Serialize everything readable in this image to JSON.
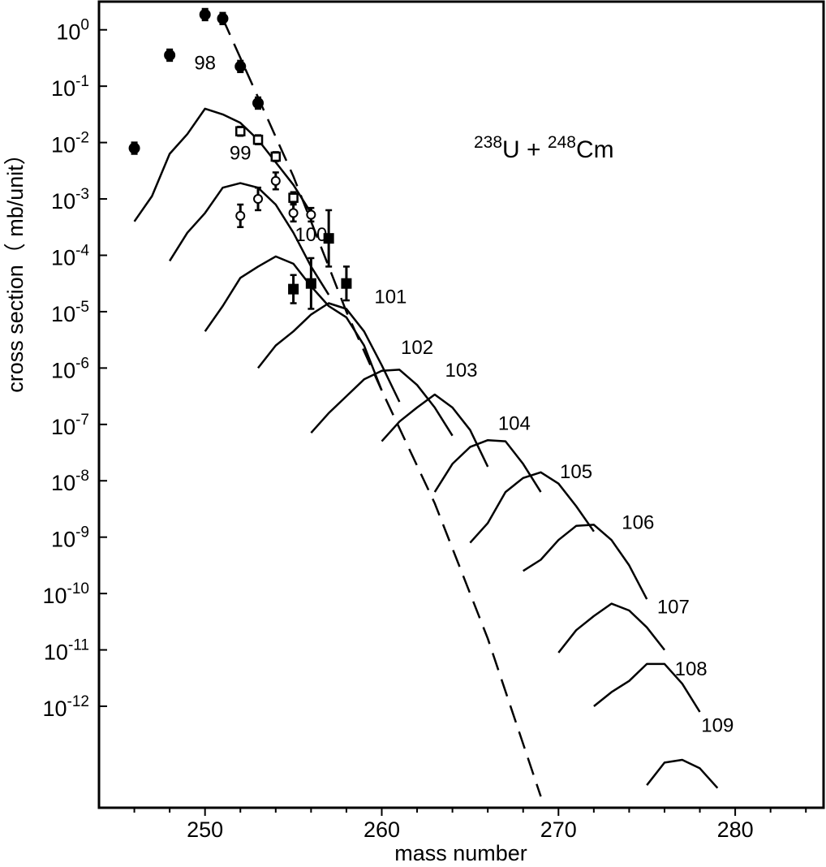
{
  "chart_data": {
    "type": "line",
    "xlabel": "mass number",
    "ylabel": "cross section（ mb/unit）",
    "annotation": {
      "mass1": "238",
      "symbol1": "U",
      "plus": " + ",
      "mass2": "248",
      "symbol2": "Cm"
    },
    "xlim": [
      244,
      285
    ],
    "ylim_log10": [
      -13.8,
      0.5
    ],
    "y_scale": "log",
    "grid": false,
    "x_ticks": [
      {
        "value": 250,
        "label": "250"
      },
      {
        "value": 260,
        "label": "260"
      },
      {
        "value": 270,
        "label": "270"
      },
      {
        "value": 280,
        "label": "280"
      }
    ],
    "y_ticks": [
      {
        "exp": 0,
        "base": "10",
        "sup": "0"
      },
      {
        "exp": -1,
        "base": "10",
        "sup": "-1"
      },
      {
        "exp": -2,
        "base": "10",
        "sup": "-2"
      },
      {
        "exp": -3,
        "base": "10",
        "sup": "-3"
      },
      {
        "exp": -4,
        "base": "10",
        "sup": "-4"
      },
      {
        "exp": -5,
        "base": "10",
        "sup": "-5"
      },
      {
        "exp": -6,
        "base": "10",
        "sup": "-6"
      },
      {
        "exp": -7,
        "base": "10",
        "sup": "-7"
      },
      {
        "exp": -8,
        "base": "10",
        "sup": "-8"
      },
      {
        "exp": -9,
        "base": "10",
        "sup": "-9"
      },
      {
        "exp": -10,
        "base": "10",
        "sup": "-10"
      },
      {
        "exp": -11,
        "base": "10",
        "sup": "-11"
      },
      {
        "exp": -12,
        "base": "10",
        "sup": "-12"
      }
    ],
    "curves": [
      {
        "label": "98",
        "label_at": [
          250.0,
          -0.7
        ],
        "points": [
          [
            246,
            -3.4
          ],
          [
            247,
            -2.95
          ],
          [
            248,
            -2.2
          ],
          [
            249,
            -1.85
          ],
          [
            250,
            -1.4
          ],
          [
            251,
            -1.5
          ],
          [
            252,
            -1.65
          ],
          [
            253,
            -1.95
          ],
          [
            254,
            -2.35
          ],
          [
            255,
            -2.75
          ],
          [
            256,
            -3.25
          ]
        ]
      },
      {
        "label": "99",
        "label_at": [
          252.0,
          -2.3
        ],
        "points": [
          [
            248,
            -4.1
          ],
          [
            249,
            -3.6
          ],
          [
            250,
            -3.25
          ],
          [
            251,
            -2.8
          ],
          [
            252,
            -2.72
          ],
          [
            253,
            -2.8
          ],
          [
            254,
            -3.1
          ],
          [
            255,
            -3.6
          ],
          [
            256,
            -4.2
          ],
          [
            257,
            -4.7
          ]
        ]
      },
      {
        "label": "100",
        "label_at": [
          256.0,
          -3.75
        ],
        "points": [
          [
            250,
            -5.35
          ],
          [
            251,
            -4.9
          ],
          [
            252,
            -4.4
          ],
          [
            253,
            -4.2
          ],
          [
            254,
            -4.02
          ],
          [
            255,
            -4.15
          ],
          [
            256,
            -4.55
          ],
          [
            257,
            -4.9
          ],
          [
            258,
            -5.1
          ],
          [
            259,
            -5.6
          ],
          [
            260,
            -6.4
          ]
        ]
      },
      {
        "label": "101",
        "label_at": [
          260.5,
          -4.85
        ],
        "points": [
          [
            253,
            -6.0
          ],
          [
            254,
            -5.6
          ],
          [
            255,
            -5.35
          ],
          [
            256,
            -5.05
          ],
          [
            257,
            -4.85
          ],
          [
            258,
            -4.95
          ],
          [
            259,
            -5.35
          ],
          [
            260,
            -5.95
          ],
          [
            261,
            -6.6
          ]
        ]
      },
      {
        "label": "102",
        "label_at": [
          262.0,
          -5.75
        ],
        "points": [
          [
            256,
            -7.15
          ],
          [
            257,
            -6.8
          ],
          [
            258,
            -6.5
          ],
          [
            259,
            -6.2
          ],
          [
            260,
            -6.05
          ],
          [
            261,
            -6.03
          ],
          [
            262,
            -6.3
          ],
          [
            263,
            -6.7
          ],
          [
            264,
            -7.2
          ]
        ]
      },
      {
        "label": "103",
        "label_at": [
          264.5,
          -6.15
        ],
        "points": [
          [
            260,
            -7.3
          ],
          [
            261,
            -6.95
          ],
          [
            262,
            -6.7
          ],
          [
            263,
            -6.47
          ],
          [
            264,
            -6.7
          ],
          [
            265,
            -7.1
          ],
          [
            266,
            -7.75
          ]
        ]
      },
      {
        "label": "104",
        "label_at": [
          267.5,
          -7.1
        ],
        "points": [
          [
            263,
            -8.2
          ],
          [
            264,
            -7.7
          ],
          [
            265,
            -7.4
          ],
          [
            266,
            -7.28
          ],
          [
            267,
            -7.3
          ],
          [
            268,
            -7.7
          ],
          [
            269,
            -8.2
          ]
        ]
      },
      {
        "label": "105",
        "label_at": [
          271.0,
          -7.95
        ],
        "points": [
          [
            265,
            -9.1
          ],
          [
            266,
            -8.75
          ],
          [
            267,
            -8.2
          ],
          [
            268,
            -7.95
          ],
          [
            269,
            -7.85
          ],
          [
            270,
            -8.05
          ],
          [
            271,
            -8.45
          ],
          [
            272,
            -8.9
          ]
        ]
      },
      {
        "label": "106",
        "label_at": [
          274.5,
          -8.85
        ],
        "points": [
          [
            268,
            -9.6
          ],
          [
            269,
            -9.4
          ],
          [
            270,
            -9.05
          ],
          [
            271,
            -8.8
          ],
          [
            272,
            -8.78
          ],
          [
            273,
            -9.05
          ],
          [
            274,
            -9.5
          ],
          [
            275,
            -10.1
          ]
        ]
      },
      {
        "label": "107",
        "label_at": [
          276.5,
          -10.35
        ],
        "points": [
          [
            270,
            -11.05
          ],
          [
            271,
            -10.65
          ],
          [
            272,
            -10.4
          ],
          [
            273,
            -10.18
          ],
          [
            274,
            -10.3
          ],
          [
            275,
            -10.6
          ],
          [
            276,
            -11.0
          ]
        ]
      },
      {
        "label": "108",
        "label_at": [
          277.5,
          -11.45
        ],
        "points": [
          [
            272,
            -12.0
          ],
          [
            273,
            -11.75
          ],
          [
            274,
            -11.55
          ],
          [
            275,
            -11.25
          ],
          [
            276,
            -11.25
          ],
          [
            277,
            -11.6
          ],
          [
            278,
            -12.1
          ]
        ]
      },
      {
        "label": "109",
        "label_at": [
          279.0,
          -12.45
        ],
        "points": [
          [
            275,
            -13.4
          ],
          [
            276,
            -13.0
          ],
          [
            277,
            -12.95
          ],
          [
            278,
            -13.1
          ],
          [
            279,
            -13.45
          ]
        ]
      }
    ],
    "dashed_line": {
      "points": [
        [
          251,
          0.2
        ],
        [
          255,
          -2.6
        ],
        [
          258,
          -5.0
        ],
        [
          260,
          -6.4
        ],
        [
          263,
          -8.4
        ],
        [
          266,
          -10.8
        ],
        [
          269,
          -13.6
        ]
      ]
    },
    "data_points": {
      "filled_circles": [
        {
          "x": 246,
          "y": -2.1,
          "err": 0.1
        },
        {
          "x": 248,
          "y": -0.45,
          "err": 0.1
        },
        {
          "x": 250,
          "y": 0.27,
          "err": 0.1
        },
        {
          "x": 251,
          "y": 0.2,
          "err": 0.1
        },
        {
          "x": 252,
          "y": -0.65,
          "err": 0.1
        },
        {
          "x": 253,
          "y": -1.3,
          "err": 0.1
        }
      ],
      "open_squares": [
        {
          "x": 252,
          "y": -1.8,
          "err": 0.08
        },
        {
          "x": 253,
          "y": -1.95,
          "err": 0.08
        },
        {
          "x": 254,
          "y": -2.25,
          "err": 0.08
        },
        {
          "x": 255,
          "y": -2.98,
          "err": 0.1
        }
      ],
      "open_circles": [
        {
          "x": 252,
          "y": -3.3,
          "err": 0.2
        },
        {
          "x": 253,
          "y": -3.0,
          "err": 0.2
        },
        {
          "x": 254,
          "y": -2.68,
          "err": 0.15
        },
        {
          "x": 255,
          "y": -3.25,
          "err": 0.15
        },
        {
          "x": 256,
          "y": -3.28,
          "err": 0.12
        }
      ],
      "filled_squares": [
        {
          "x": 255,
          "y": -4.6,
          "err": 0.25
        },
        {
          "x": 256,
          "y": -4.5,
          "err": 0.45
        },
        {
          "x": 257,
          "y": -3.7,
          "err": 0.5
        },
        {
          "x": 258,
          "y": -4.5,
          "err": 0.3
        }
      ]
    }
  }
}
